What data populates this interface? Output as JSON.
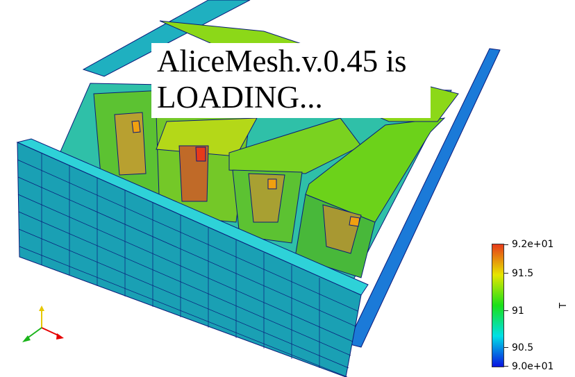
{
  "banner": {
    "line1": "AliceMesh.v.0.45 is",
    "line2": "LOADING..."
  },
  "colorbar": {
    "title": "T",
    "max_label": "9.2e+01",
    "min_label": "9.0e+01",
    "ticks": [
      "91.5",
      "91",
      "90.5"
    ],
    "range": [
      90,
      92
    ],
    "colors": [
      "#0a14e0",
      "#00e0e6",
      "#1ae01a",
      "#e6e600",
      "#e63a1a"
    ]
  },
  "orientation_axes": {
    "x_color": "#e60000",
    "y_color": "#e6c800",
    "z_color": "#1ab41a"
  },
  "scene": {
    "mesh_edge_color": "#0a1a7a",
    "wall_color": "#1aa6b4",
    "top_edge_color": "#2ec8d2",
    "component_color": "#6cd21a",
    "hotspot_color": "#e63a1a"
  }
}
